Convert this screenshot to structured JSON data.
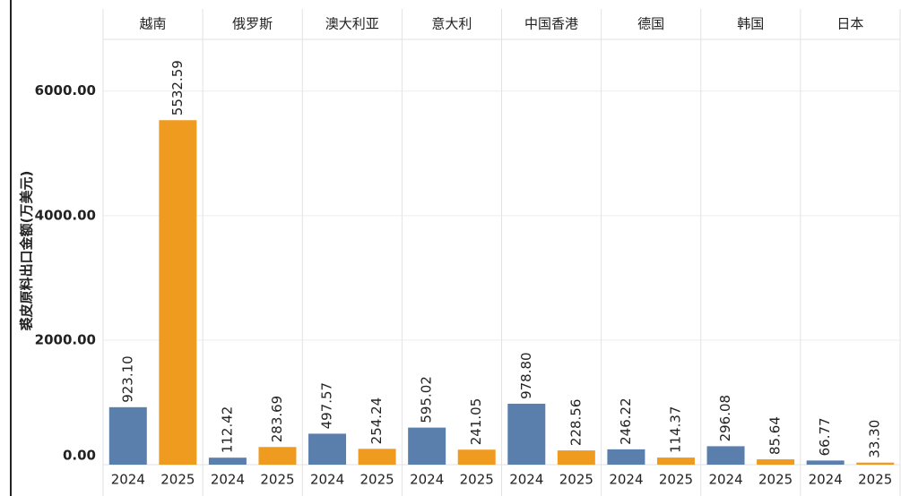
{
  "chart_data": {
    "type": "bar",
    "y_label": "裘皮原料出口金额(万美元)",
    "categories": [
      "越南",
      "俄罗斯",
      "澳大利亚",
      "意大利",
      "中国香港",
      "德国",
      "韩国",
      "日本"
    ],
    "series": [
      {
        "name": "2024",
        "color": "#5b7fad",
        "values": [
          923.1,
          112.42,
          497.57,
          595.02,
          978.8,
          246.22,
          296.08,
          66.77
        ],
        "value_labels": [
          "923.10",
          "112.42",
          "497.57",
          "595.02",
          "978.80",
          "246.22",
          "296.08",
          "66.77"
        ]
      },
      {
        "name": "2025",
        "color": "#ef9b20",
        "values": [
          5532.59,
          283.69,
          254.24,
          241.05,
          228.56,
          114.37,
          85.64,
          33.3
        ],
        "value_labels": [
          "5532.59",
          "283.69",
          "254.24",
          "241.05",
          "228.56",
          "114.37",
          "85.64",
          "33.30"
        ]
      }
    ],
    "ylim": [
      0,
      6830
    ],
    "yticks": [
      {
        "value": 0,
        "label": "0.00"
      },
      {
        "value": 2000,
        "label": "2000.00"
      },
      {
        "value": 4000,
        "label": "4000.00"
      },
      {
        "value": 6000,
        "label": "6000.00"
      }
    ],
    "grid": true
  }
}
